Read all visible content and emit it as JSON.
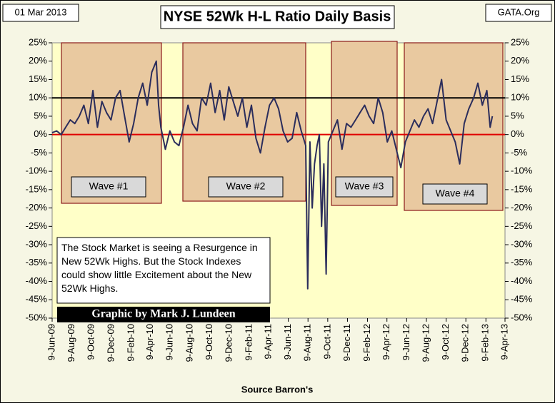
{
  "chart_data": {
    "type": "line",
    "title": "NYSE 52Wk H-L Ratio Daily Basis",
    "date_label": "01 Mar 2013",
    "source_site": "GATA.Org",
    "x_label": "Source Barron's",
    "note": "The Stock Market is seeing a Resurgence in New 52Wk Highs.  But the Stock Indexes could show little Excitement about the New 52Wk Highs.",
    "credit": "Graphic by Mark J. Lundeen",
    "annotations": [
      "Wave #1",
      "Wave #2",
      "Wave #3",
      "Wave #4"
    ],
    "reference_lines": [
      {
        "value": 10,
        "color": "#000000"
      },
      {
        "value": 0,
        "color": "#e00000"
      }
    ],
    "xlim": [
      "2009-06-09",
      "2013-04-09"
    ],
    "xticks": [
      {
        "value": "2009-06-09",
        "label": "9-Jun-09"
      },
      {
        "value": "2009-08-09",
        "label": "9-Aug-09"
      },
      {
        "value": "2009-10-09",
        "label": "9-Oct-09"
      },
      {
        "value": "2009-12-09",
        "label": "9-Dec-09"
      },
      {
        "value": "2010-02-09",
        "label": "9-Feb-10"
      },
      {
        "value": "2010-04-09",
        "label": "9-Apr-10"
      },
      {
        "value": "2010-06-09",
        "label": "9-Jun-10"
      },
      {
        "value": "2010-08-09",
        "label": "9-Aug-10"
      },
      {
        "value": "2010-10-09",
        "label": "9-Oct-10"
      },
      {
        "value": "2010-12-09",
        "label": "9-Dec-10"
      },
      {
        "value": "2011-02-09",
        "label": "9-Feb-11"
      },
      {
        "value": "2011-04-09",
        "label": "9-Apr-11"
      },
      {
        "value": "2011-06-09",
        "label": "9-Jun-11"
      },
      {
        "value": "2011-08-09",
        "label": "9-Aug-11"
      },
      {
        "value": "2011-10-09",
        "label": "9-Oct-11"
      },
      {
        "value": "2011-12-09",
        "label": "9-Dec-11"
      },
      {
        "value": "2012-02-09",
        "label": "9-Feb-12"
      },
      {
        "value": "2012-04-09",
        "label": "9-Apr-12"
      },
      {
        "value": "2012-06-09",
        "label": "9-Jun-12"
      },
      {
        "value": "2012-08-09",
        "label": "9-Aug-12"
      },
      {
        "value": "2012-10-09",
        "label": "9-Oct-12"
      },
      {
        "value": "2012-12-09",
        "label": "9-Dec-12"
      },
      {
        "value": "2013-02-09",
        "label": "9-Feb-13"
      },
      {
        "value": "2013-04-09",
        "label": "9-Apr-13"
      }
    ],
    "ylim": [
      -50,
      25
    ],
    "yticks": [
      {
        "value": 25,
        "label": "25%"
      },
      {
        "value": 20,
        "label": "20%"
      },
      {
        "value": 15,
        "label": "15%"
      },
      {
        "value": 10,
        "label": "10%"
      },
      {
        "value": 5,
        "label": "5%"
      },
      {
        "value": 0,
        "label": "0%"
      },
      {
        "value": -5,
        "label": "-5%"
      },
      {
        "value": -10,
        "label": "-10%"
      },
      {
        "value": -15,
        "label": "-15%"
      },
      {
        "value": -20,
        "label": "-20%"
      },
      {
        "value": -25,
        "label": "-25%"
      },
      {
        "value": -30,
        "label": "-30%"
      },
      {
        "value": -35,
        "label": "-35%"
      },
      {
        "value": -40,
        "label": "-40%"
      },
      {
        "value": -45,
        "label": "-45%"
      },
      {
        "value": -50,
        "label": "-50%"
      }
    ],
    "y2lim": [
      -50,
      25
    ],
    "y2ticks": [
      {
        "value": 25,
        "label": "25%"
      },
      {
        "value": 20,
        "label": "20%"
      },
      {
        "value": 15,
        "label": "15%"
      },
      {
        "value": 10,
        "label": "10%"
      },
      {
        "value": 5,
        "label": "5%"
      },
      {
        "value": 0,
        "label": "0%"
      },
      {
        "value": -5,
        "label": "-5%"
      },
      {
        "value": -10,
        "label": "-10%"
      },
      {
        "value": -15,
        "label": "-15%"
      },
      {
        "value": -20,
        "label": "-20%"
      },
      {
        "value": -25,
        "label": "-25%"
      },
      {
        "value": -30,
        "label": "-30%"
      },
      {
        "value": -35,
        "label": "-35%"
      },
      {
        "value": -40,
        "label": "-40%"
      },
      {
        "value": -45,
        "label": "-45%"
      },
      {
        "value": -50,
        "label": "-50%"
      }
    ],
    "series": [
      {
        "color": "#2b2d5c",
        "x": [
          "2009-06-09",
          "2009-06-23",
          "2009-07-07",
          "2009-07-21",
          "2009-08-04",
          "2009-08-18",
          "2009-09-01",
          "2009-09-15",
          "2009-09-29",
          "2009-10-13",
          "2009-10-27",
          "2009-11-10",
          "2009-11-24",
          "2009-12-08",
          "2009-12-22",
          "2010-01-05",
          "2010-01-19",
          "2010-02-02",
          "2010-02-16",
          "2010-03-02",
          "2010-03-16",
          "2010-03-30",
          "2010-04-13",
          "2010-04-27",
          "2010-05-04",
          "2010-05-11",
          "2010-05-25",
          "2010-06-08",
          "2010-06-22",
          "2010-07-06",
          "2010-07-20",
          "2010-08-03",
          "2010-08-17",
          "2010-08-31",
          "2010-09-14",
          "2010-09-28",
          "2010-10-12",
          "2010-10-26",
          "2010-11-09",
          "2010-11-23",
          "2010-12-07",
          "2010-12-21",
          "2011-01-04",
          "2011-01-18",
          "2011-02-01",
          "2011-02-15",
          "2011-03-01",
          "2011-03-15",
          "2011-03-29",
          "2011-04-12",
          "2011-04-26",
          "2011-05-10",
          "2011-05-24",
          "2011-06-07",
          "2011-06-21",
          "2011-07-05",
          "2011-07-19",
          "2011-08-02",
          "2011-08-08",
          "2011-08-15",
          "2011-08-22",
          "2011-08-29",
          "2011-09-06",
          "2011-09-13",
          "2011-09-20",
          "2011-09-27",
          "2011-10-04",
          "2011-10-11",
          "2011-10-25",
          "2011-11-08",
          "2011-11-22",
          "2011-12-06",
          "2011-12-20",
          "2012-01-03",
          "2012-01-17",
          "2012-01-31",
          "2012-02-14",
          "2012-02-28",
          "2012-03-13",
          "2012-03-27",
          "2012-04-10",
          "2012-04-24",
          "2012-05-08",
          "2012-05-22",
          "2012-06-05",
          "2012-06-19",
          "2012-07-03",
          "2012-07-17",
          "2012-07-31",
          "2012-08-14",
          "2012-08-28",
          "2012-09-11",
          "2012-09-25",
          "2012-10-09",
          "2012-10-23",
          "2012-11-06",
          "2012-11-20",
          "2012-12-04",
          "2012-12-18",
          "2013-01-02",
          "2013-01-15",
          "2013-01-29",
          "2013-02-12",
          "2013-02-22",
          "2013-03-01"
        ],
        "values": [
          0.5,
          1,
          0,
          2,
          4,
          3,
          5,
          8,
          3,
          12,
          2,
          9,
          6,
          4,
          10,
          12,
          5,
          -2,
          3,
          10,
          14,
          8,
          17,
          20,
          8,
          2,
          -4,
          1,
          -2,
          -3,
          2,
          8,
          3,
          1,
          10,
          8,
          14,
          6,
          12,
          4,
          13,
          9,
          5,
          10,
          2,
          8,
          -1,
          -5,
          2,
          8,
          10,
          7,
          1,
          -2,
          -1,
          6,
          1,
          -3,
          -42,
          -2,
          -20,
          -8,
          -3,
          0,
          -25,
          -8,
          -38,
          -2,
          1,
          4,
          -4,
          3,
          2,
          4,
          6,
          8,
          5,
          3,
          10,
          6,
          -2,
          1,
          -4,
          -9,
          -2,
          1,
          4,
          2,
          5,
          7,
          3,
          9,
          15,
          4,
          1,
          -2,
          -8,
          3,
          7,
          10,
          14,
          8,
          12,
          2,
          5
        ]
      }
    ]
  }
}
